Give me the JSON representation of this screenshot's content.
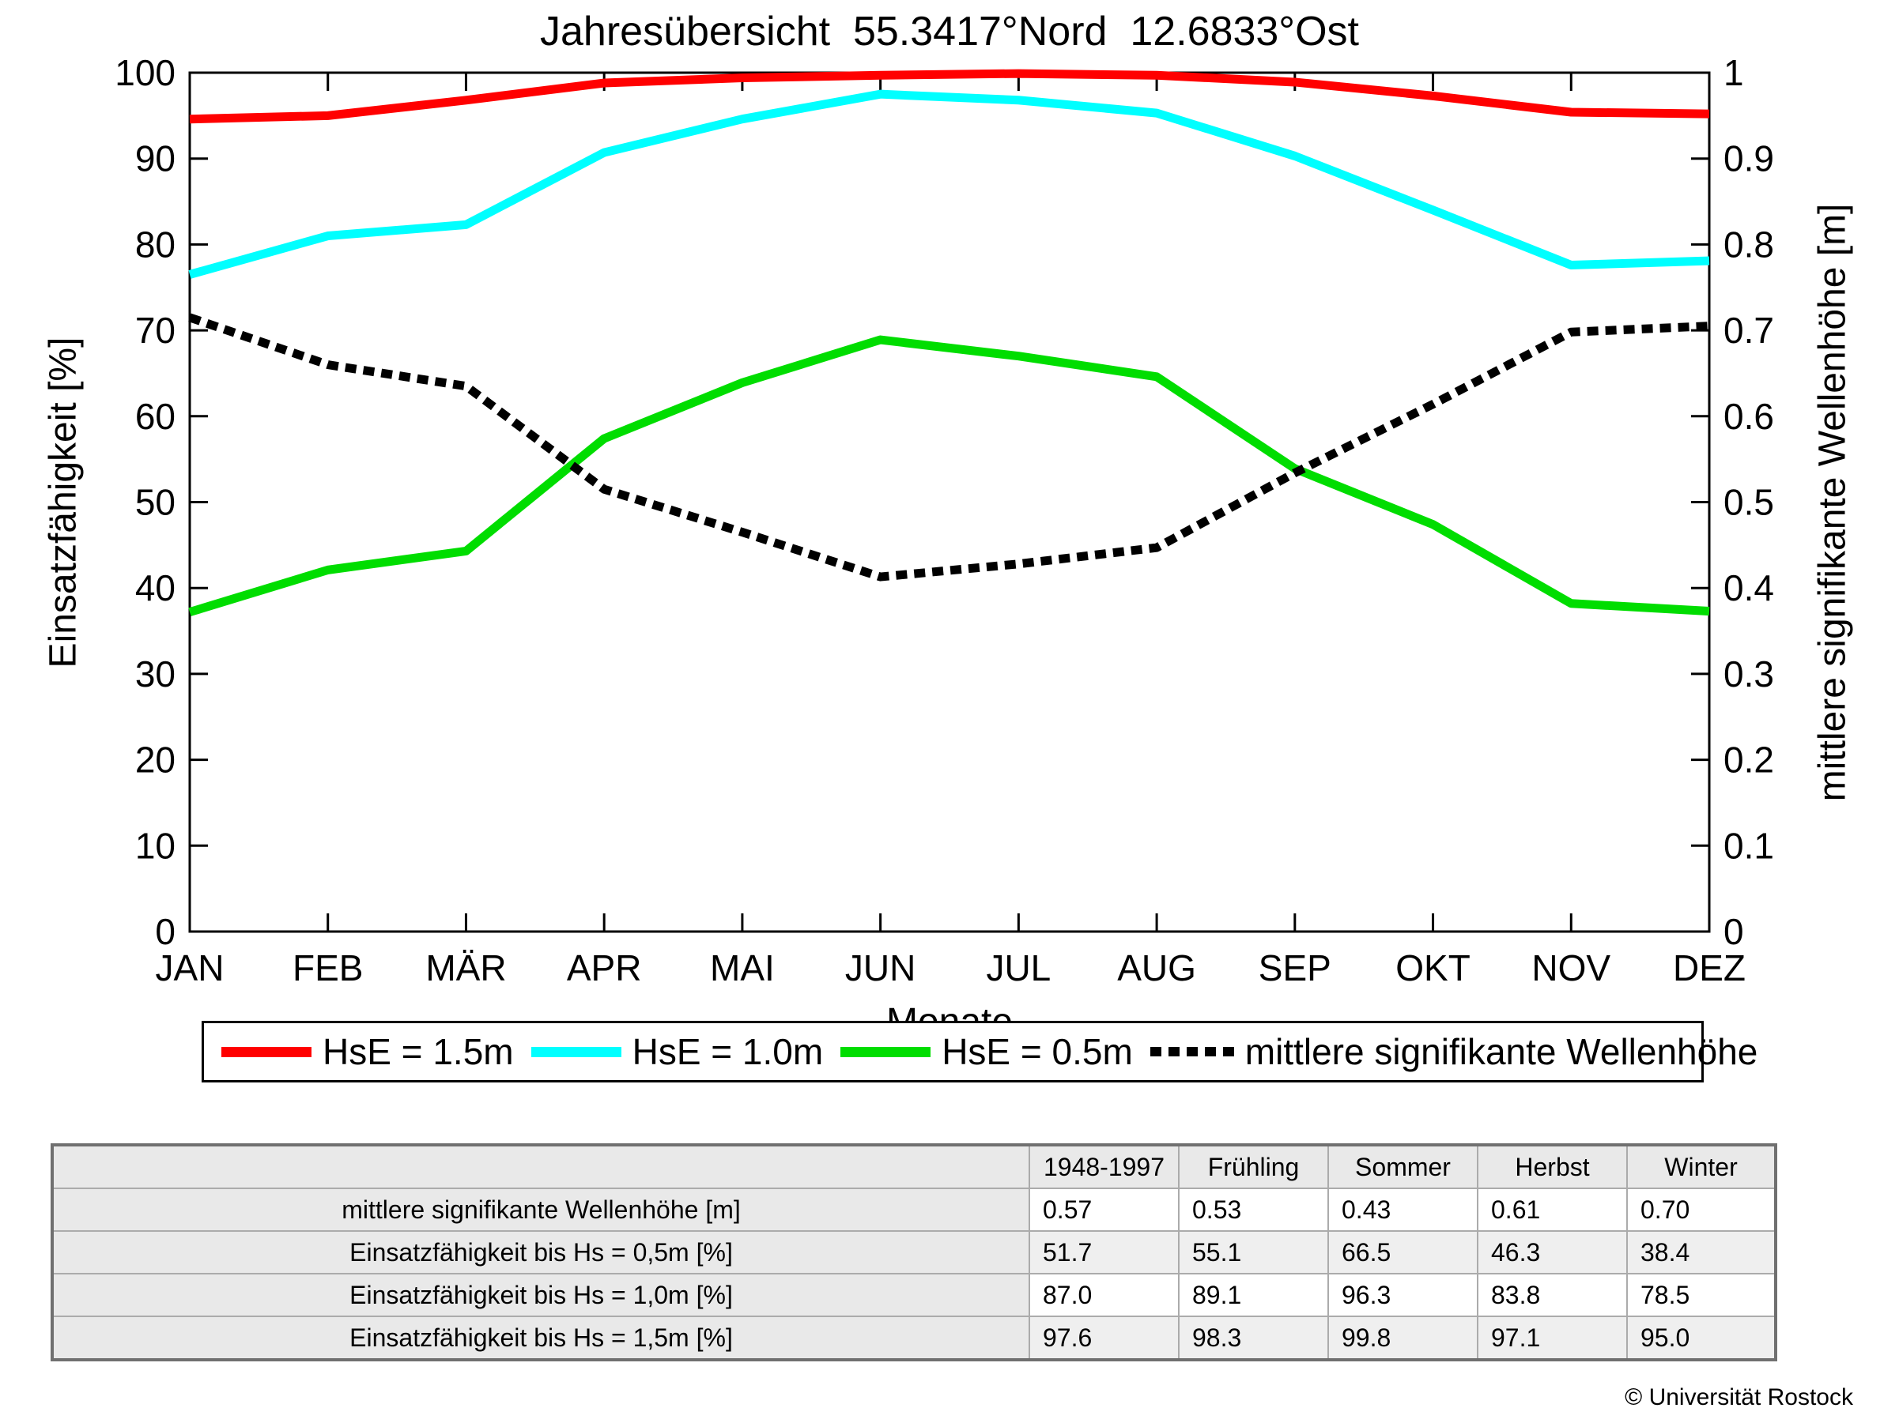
{
  "title": "Jahresübersicht  55.3417°Nord  12.6833°Ost",
  "chart_data": {
    "type": "line",
    "title": "Jahresübersicht  55.3417°Nord  12.6833°Ost",
    "categories": [
      "JAN",
      "FEB",
      "MÄR",
      "APR",
      "MAI",
      "JUN",
      "JUL",
      "AUG",
      "SEP",
      "OKT",
      "NOV",
      "DEZ"
    ],
    "xlabel": "Monate",
    "ylabel_left": "Einsatzfähigkeit [%]",
    "ylabel_right": "mittlere signifikante Wellenhöhe [m]",
    "ylim_left": [
      0,
      100
    ],
    "ylim_right": [
      0,
      1
    ],
    "yticks_left": [
      "0",
      "10",
      "20",
      "30",
      "40",
      "50",
      "60",
      "70",
      "80",
      "90",
      "100"
    ],
    "yticks_right": [
      "0",
      "0.1",
      "0.2",
      "0.3",
      "0.4",
      "0.5",
      "0.6",
      "0.7",
      "0.8",
      "0.9",
      "1"
    ],
    "grid": false,
    "legend_position": "bottom",
    "series": [
      {
        "name": "HsE = 1.5m",
        "color": "#ff0000",
        "style": "solid",
        "axis": "left",
        "values": [
          94.6,
          95.0,
          96.8,
          98.8,
          99.4,
          99.7,
          99.9,
          99.7,
          98.9,
          97.3,
          95.4,
          95.2
        ]
      },
      {
        "name": "HsE = 1.0m",
        "color": "#00ffff",
        "style": "solid",
        "axis": "left",
        "values": [
          76.5,
          81.0,
          82.3,
          90.7,
          94.6,
          97.5,
          96.8,
          95.3,
          90.3,
          84.0,
          77.6,
          78.1
        ]
      },
      {
        "name": "HsE = 0.5m",
        "color": "#00dd00",
        "style": "solid",
        "axis": "left",
        "values": [
          37.2,
          42.1,
          44.3,
          57.4,
          63.9,
          68.9,
          67.0,
          64.6,
          53.9,
          47.4,
          38.2,
          37.3
        ]
      },
      {
        "name": "mittlere signifikante Wellenhöhe",
        "color": "#000000",
        "style": "dotted",
        "axis": "right",
        "values": [
          0.715,
          0.66,
          0.635,
          0.515,
          0.465,
          0.413,
          0.428,
          0.447,
          0.534,
          0.614,
          0.698,
          0.705
        ]
      }
    ]
  },
  "table": {
    "columns": [
      "1948-1997",
      "Frühling",
      "Sommer",
      "Herbst",
      "Winter"
    ],
    "rows": [
      {
        "label": "mittlere signifikante Wellenhöhe [m]",
        "values": [
          "0.57",
          "0.53",
          "0.43",
          "0.61",
          "0.70"
        ]
      },
      {
        "label": "Einsatzfähigkeit bis Hs = 0,5m [%]",
        "values": [
          "51.7",
          "55.1",
          "66.5",
          "46.3",
          "38.4"
        ]
      },
      {
        "label": "Einsatzfähigkeit bis Hs = 1,0m [%]",
        "values": [
          "87.0",
          "89.1",
          "96.3",
          "83.8",
          "78.5"
        ]
      },
      {
        "label": "Einsatzfähigkeit bis Hs = 1,5m [%]",
        "values": [
          "97.6",
          "98.3",
          "99.8",
          "97.1",
          "95.0"
        ]
      }
    ]
  },
  "footer": {
    "copyright": "© Universität Rostock"
  }
}
